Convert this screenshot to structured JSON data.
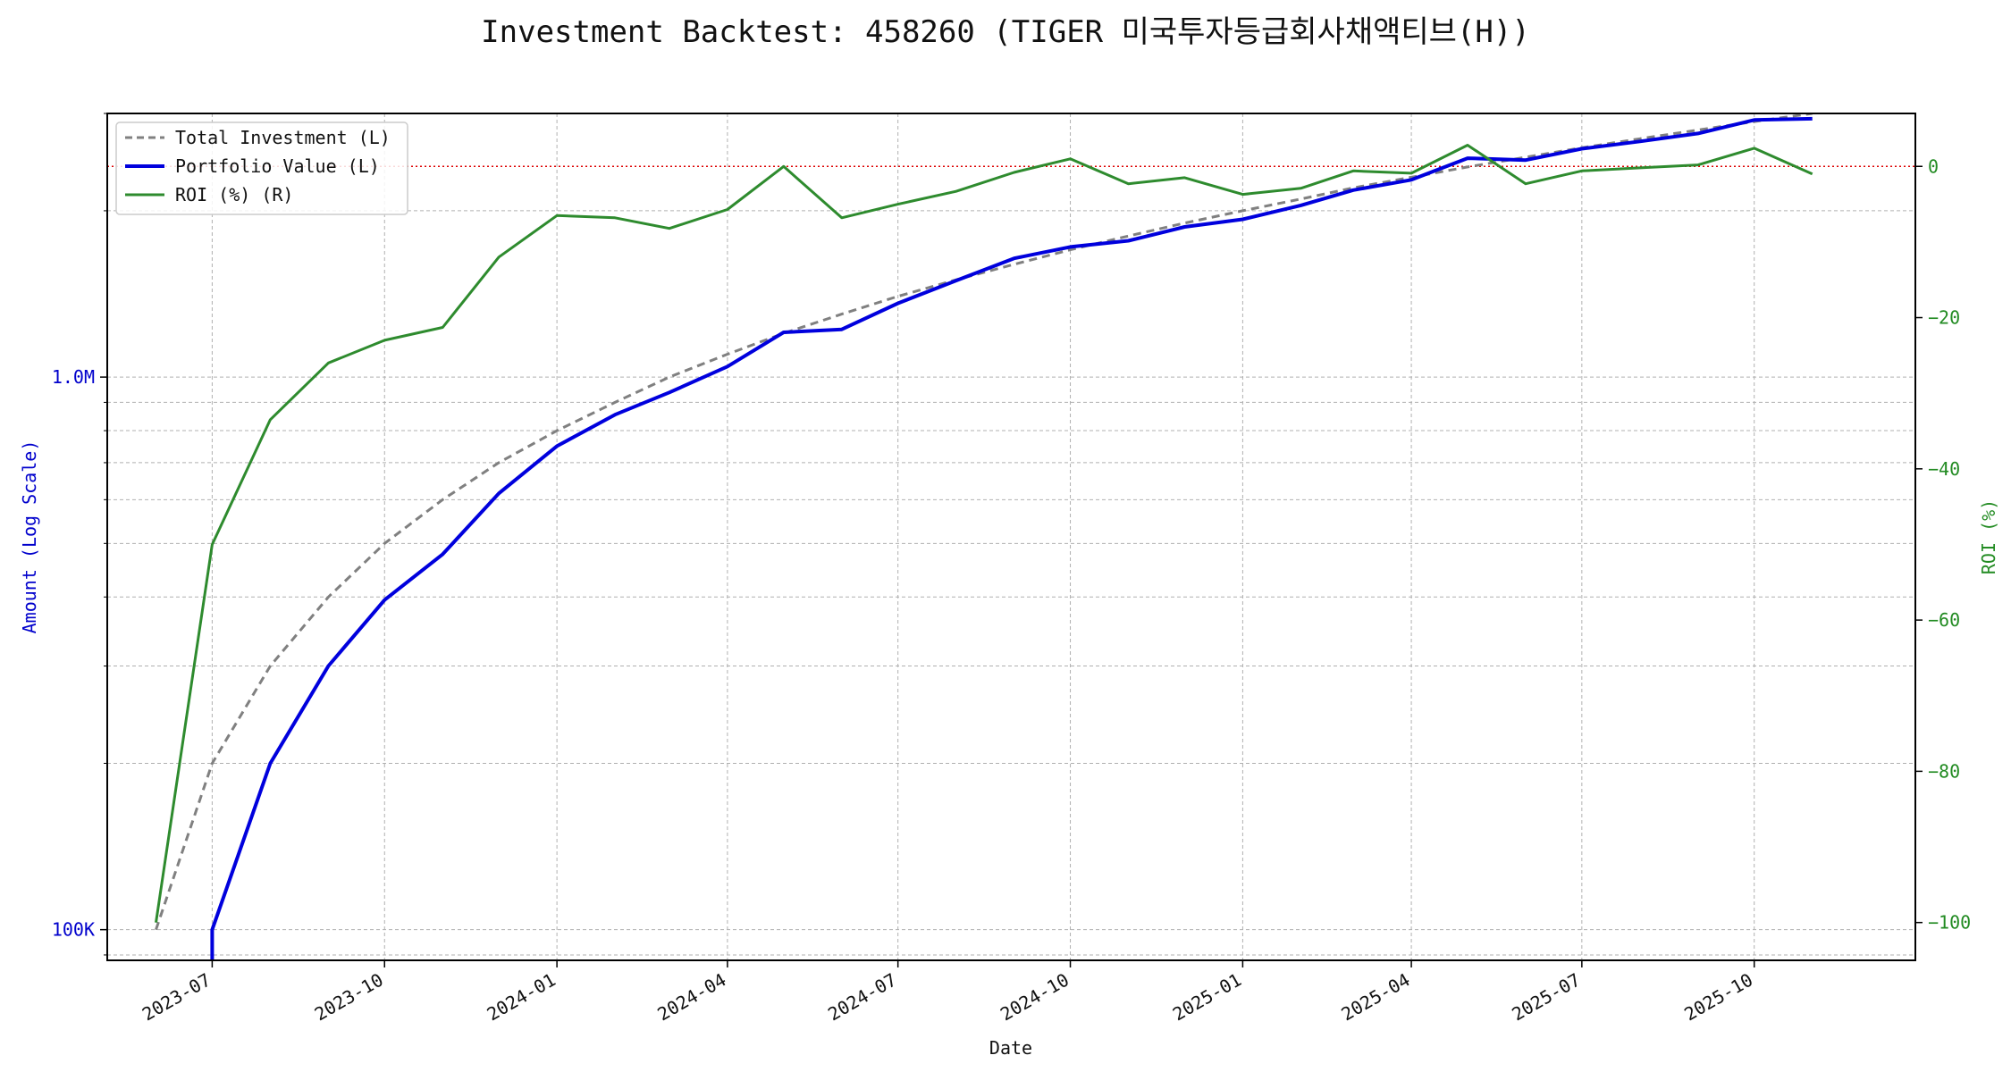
{
  "chart_data": {
    "type": "line",
    "title": "Investment Backtest: 458260 (TIGER 미국투자등급회사채액티브(H))",
    "xlabel": "Date",
    "ylabel_left": "Amount (Log Scale)",
    "ylabel_right": "ROI (%)",
    "y_left_scale": "log",
    "y_left_range": [
      88000,
      3000000
    ],
    "y_right_range": [
      -105,
      7
    ],
    "x_range": [
      "2023-05-06",
      "2025-12-26"
    ],
    "grid": true,
    "legend_position": "top-left",
    "colors": {
      "total_investment": "#808080",
      "portfolio_value": "#0000dd",
      "roi": "#2e8b2e",
      "zero_line": "#dd0000",
      "left_axis": "#0000cc",
      "right_axis": "#228b22"
    },
    "x_ticks": [
      {
        "label": "2023-07",
        "date": "2023-07-01"
      },
      {
        "label": "2023-10",
        "date": "2023-10-01"
      },
      {
        "label": "2024-01",
        "date": "2024-01-01"
      },
      {
        "label": "2024-04",
        "date": "2024-04-01"
      },
      {
        "label": "2024-07",
        "date": "2024-07-01"
      },
      {
        "label": "2024-10",
        "date": "2024-10-01"
      },
      {
        "label": "2025-01",
        "date": "2025-01-01"
      },
      {
        "label": "2025-04",
        "date": "2025-04-01"
      },
      {
        "label": "2025-07",
        "date": "2025-07-01"
      },
      {
        "label": "2025-10",
        "date": "2025-10-01"
      }
    ],
    "y_left_ticks": [
      {
        "label": "100K",
        "value": 100000
      },
      {
        "label": "1.0M",
        "value": 1000000
      }
    ],
    "y_left_minor_ticks": [
      90000,
      200000,
      300000,
      400000,
      500000,
      600000,
      700000,
      800000,
      900000,
      2000000,
      3000000
    ],
    "y_right_ticks": [
      {
        "label": "0",
        "value": 0
      },
      {
        "label": "−20",
        "value": -20
      },
      {
        "label": "−40",
        "value": -40
      },
      {
        "label": "−60",
        "value": -60
      },
      {
        "label": "−80",
        "value": -80
      },
      {
        "label": "−100",
        "value": -100
      }
    ],
    "series": [
      {
        "name": "Total Investment (L)",
        "axis": "left",
        "style": "dashed",
        "x": [
          "2023-06-01",
          "2023-07-01",
          "2023-08-01",
          "2023-09-01",
          "2023-10-01",
          "2023-11-01",
          "2023-12-01",
          "2024-01-01",
          "2024-02-01",
          "2024-03-01",
          "2024-04-01",
          "2024-05-01",
          "2024-06-01",
          "2024-07-01",
          "2024-08-01",
          "2024-09-01",
          "2024-10-01",
          "2024-11-01",
          "2024-12-01",
          "2025-01-01",
          "2025-02-01",
          "2025-03-01",
          "2025-04-01",
          "2025-05-01",
          "2025-06-01",
          "2025-07-01",
          "2025-08-01",
          "2025-09-01",
          "2025-10-01",
          "2025-11-01"
        ],
        "values": [
          100000,
          200000,
          300000,
          400000,
          500000,
          600000,
          700000,
          800000,
          900000,
          1000000,
          1100000,
          1200000,
          1300000,
          1400000,
          1500000,
          1600000,
          1700000,
          1800000,
          1900000,
          2000000,
          2100000,
          2200000,
          2300000,
          2400000,
          2500000,
          2600000,
          2700000,
          2800000,
          2900000,
          3000000
        ]
      },
      {
        "name": "Portfolio Value (L)",
        "axis": "left",
        "style": "solid",
        "x": [
          "2023-07-01",
          "2023-07-01",
          "2023-08-01",
          "2023-09-01",
          "2023-10-01",
          "2023-11-01",
          "2023-12-01",
          "2024-01-01",
          "2024-02-01",
          "2024-03-01",
          "2024-04-01",
          "2024-05-01",
          "2024-06-01",
          "2024-07-01",
          "2024-08-01",
          "2024-09-01",
          "2024-10-01",
          "2024-11-01",
          "2024-12-01",
          "2025-01-01",
          "2025-02-01",
          "2025-03-01",
          "2025-04-01",
          "2025-05-01",
          "2025-06-01",
          "2025-07-01",
          "2025-08-01",
          "2025-09-01",
          "2025-10-01",
          "2025-11-01"
        ],
        "values": [
          80000,
          100000,
          200000,
          300000,
          395000,
          478000,
          616000,
          750000,
          855000,
          938000,
          1045000,
          1205000,
          1220000,
          1360000,
          1495000,
          1640000,
          1720000,
          1765000,
          1870000,
          1930000,
          2045000,
          2180000,
          2275000,
          2490000,
          2470000,
          2590000,
          2670000,
          2760000,
          2920000,
          2935000
        ]
      },
      {
        "name": "ROI (%) (R)",
        "axis": "right",
        "style": "solid",
        "x": [
          "2023-06-01",
          "2023-07-01",
          "2023-08-01",
          "2023-09-01",
          "2023-10-01",
          "2023-11-01",
          "2023-12-01",
          "2024-01-01",
          "2024-02-01",
          "2024-03-01",
          "2024-04-01",
          "2024-05-01",
          "2024-06-01",
          "2024-07-01",
          "2024-08-01",
          "2024-09-01",
          "2024-10-01",
          "2024-11-01",
          "2024-12-01",
          "2025-01-01",
          "2025-02-01",
          "2025-03-01",
          "2025-04-01",
          "2025-05-01",
          "2025-06-01",
          "2025-07-01",
          "2025-08-01",
          "2025-09-01",
          "2025-10-01",
          "2025-11-01"
        ],
        "values": [
          -100,
          -50,
          -33.5,
          -26,
          -23,
          -21.3,
          -12,
          -6.5,
          -6.8,
          -8.2,
          -5.7,
          0,
          -6.8,
          -5,
          -3.3,
          -0.8,
          1,
          -2.3,
          -1.5,
          -3.7,
          -2.9,
          -0.6,
          -0.9,
          2.8,
          -2.3,
          -0.6,
          -0.2,
          0.2,
          2.4,
          -1
        ]
      }
    ],
    "reference_line": {
      "axis": "right",
      "value": 0,
      "style": "dotted"
    }
  }
}
